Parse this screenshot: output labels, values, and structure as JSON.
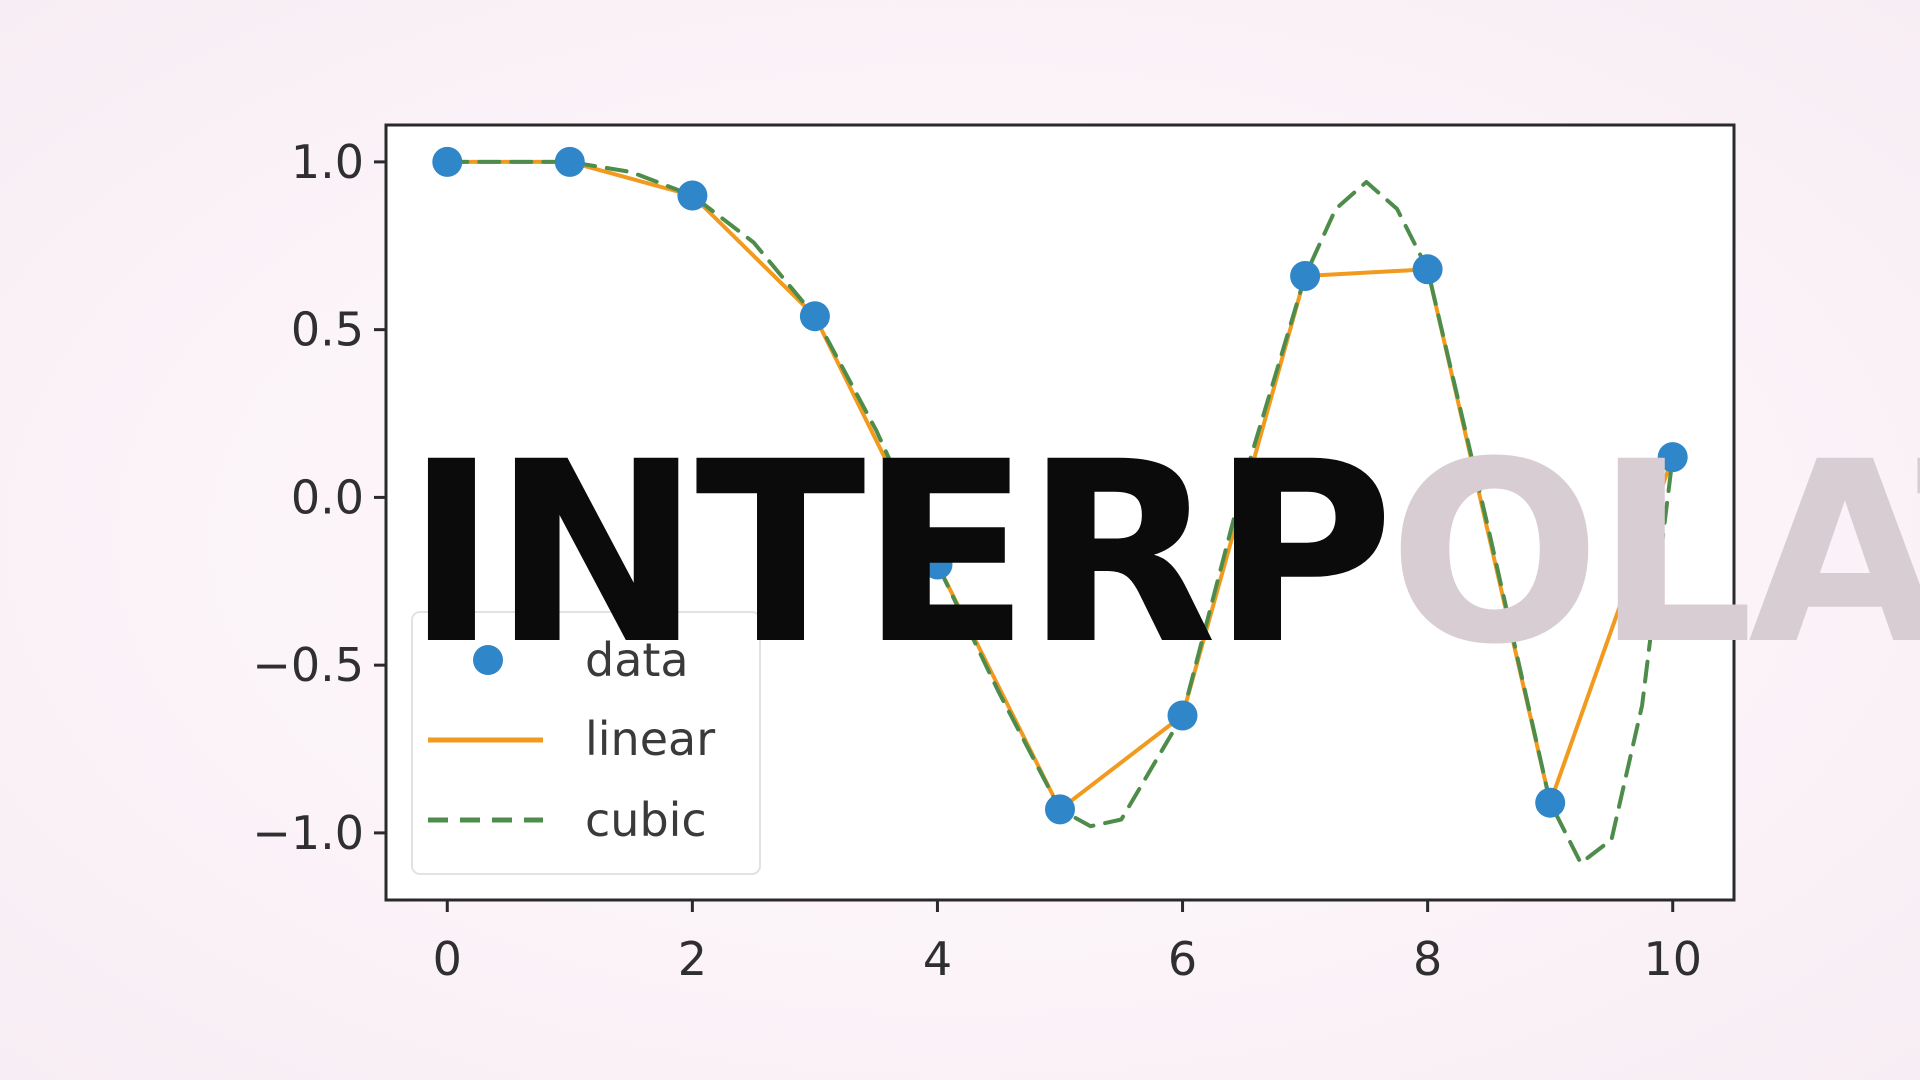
{
  "title": {
    "part1": "INTERP",
    "part2": "OLATION",
    "part1_color": "#0b0b0b",
    "part2_color": "#d9cdd4"
  },
  "chart_data": {
    "type": "line",
    "x": [
      0,
      1,
      2,
      3,
      4,
      5,
      6,
      7,
      8,
      9,
      10
    ],
    "series": [
      {
        "name": "data",
        "style": "markers",
        "color": "#2f86c8",
        "values": [
          1.0,
          1.0,
          0.9,
          0.54,
          -0.2,
          -0.93,
          -0.65,
          0.66,
          0.68,
          -0.91,
          0.12
        ]
      },
      {
        "name": "linear",
        "style": "solid-line",
        "color": "#f29a1d",
        "values": [
          1.0,
          1.0,
          0.9,
          0.54,
          -0.2,
          -0.93,
          -0.65,
          0.66,
          0.68,
          -0.91,
          0.12
        ]
      },
      {
        "name": "cubic",
        "style": "dashed-line",
        "color": "#4d8c4a",
        "x": [
          0,
          0.5,
          1,
          1.5,
          2,
          2.5,
          3,
          3.5,
          4,
          4.5,
          5,
          5.25,
          5.5,
          6,
          6.5,
          7,
          7.25,
          7.5,
          7.75,
          8,
          8.5,
          9,
          9.25,
          9.5,
          9.75,
          10
        ],
        "values": [
          1.0,
          1.0,
          1.0,
          0.97,
          0.9,
          0.76,
          0.54,
          0.2,
          -0.2,
          -0.58,
          -0.93,
          -0.98,
          -0.96,
          -0.65,
          0.05,
          0.66,
          0.86,
          0.94,
          0.86,
          0.68,
          -0.1,
          -0.91,
          -1.09,
          -1.02,
          -0.62,
          0.12
        ]
      }
    ],
    "xticks": [
      "0",
      "2",
      "4",
      "6",
      "8",
      "10"
    ],
    "xtick_values": [
      0,
      2,
      4,
      6,
      8,
      10
    ],
    "yticks": [
      "1.0",
      "0.5",
      "0.0",
      "−0.5",
      "−1.0"
    ],
    "ytick_values": [
      1.0,
      0.5,
      0.0,
      -0.5,
      -1.0
    ],
    "xlim": [
      -0.5,
      10.5
    ],
    "ylim": [
      -1.2,
      1.11
    ],
    "grid": false,
    "legend_position": "lower-left",
    "legend": [
      "data",
      "linear",
      "cubic"
    ]
  }
}
